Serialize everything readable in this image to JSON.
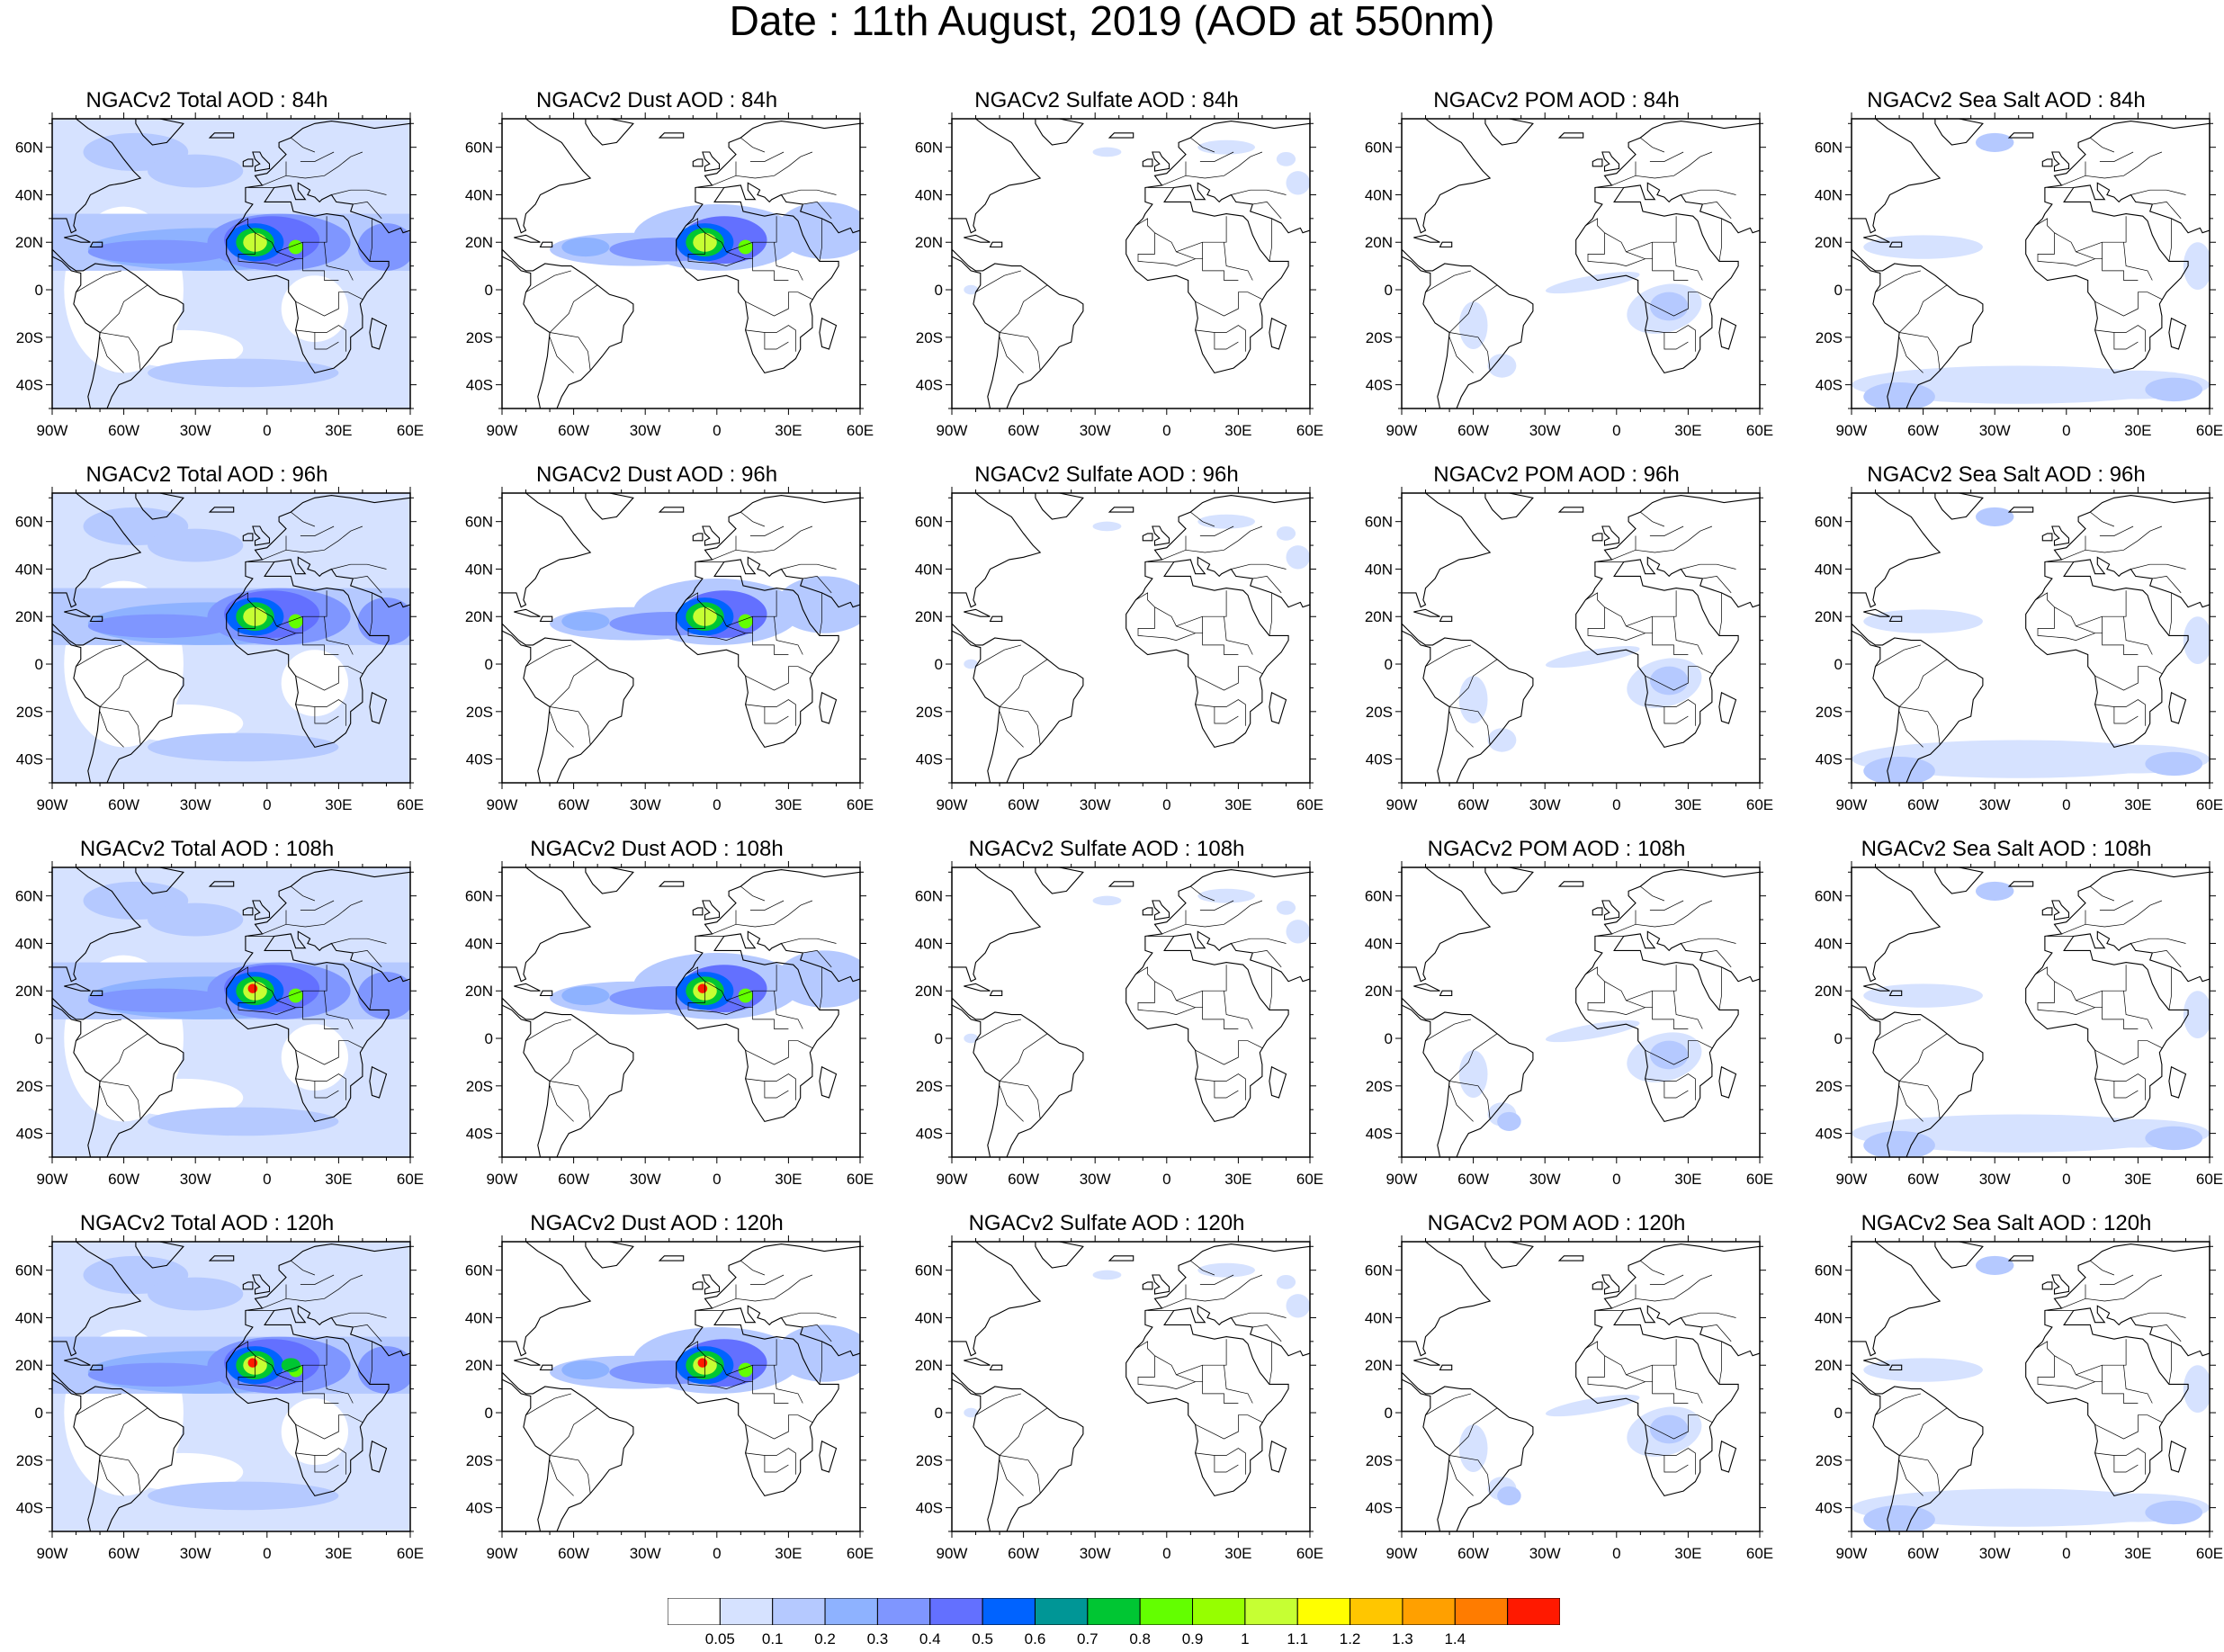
{
  "title": "Date : 11th August, 2019 (AOD at 550nm)",
  "panels": [
    {
      "title": "NGACv2 Total AOD : 84h",
      "species": "total",
      "lead": "84h"
    },
    {
      "title": "NGACv2 Dust AOD : 84h",
      "species": "dust",
      "lead": "84h"
    },
    {
      "title": "NGACv2 Sulfate AOD : 84h",
      "species": "sulfate",
      "lead": "84h"
    },
    {
      "title": "NGACv2 POM AOD : 84h",
      "species": "pom",
      "lead": "84h"
    },
    {
      "title": "NGACv2 Sea Salt AOD : 84h",
      "species": "seasalt",
      "lead": "84h"
    },
    {
      "title": "NGACv2 Total AOD : 96h",
      "species": "total",
      "lead": "96h"
    },
    {
      "title": "NGACv2 Dust AOD : 96h",
      "species": "dust",
      "lead": "96h"
    },
    {
      "title": "NGACv2 Sulfate AOD : 96h",
      "species": "sulfate",
      "lead": "96h"
    },
    {
      "title": "NGACv2 POM AOD : 96h",
      "species": "pom",
      "lead": "96h"
    },
    {
      "title": "NGACv2 Sea Salt AOD : 96h",
      "species": "seasalt",
      "lead": "96h"
    },
    {
      "title": "NGACv2 Total AOD : 108h",
      "species": "total",
      "lead": "108h"
    },
    {
      "title": "NGACv2 Dust AOD : 108h",
      "species": "dust",
      "lead": "108h"
    },
    {
      "title": "NGACv2 Sulfate AOD : 108h",
      "species": "sulfate",
      "lead": "108h"
    },
    {
      "title": "NGACv2 POM AOD : 108h",
      "species": "pom",
      "lead": "108h"
    },
    {
      "title": "NGACv2 Sea Salt AOD : 108h",
      "species": "seasalt",
      "lead": "108h"
    },
    {
      "title": "NGACv2 Total AOD : 120h",
      "species": "total",
      "lead": "120h"
    },
    {
      "title": "NGACv2 Dust AOD : 120h",
      "species": "dust",
      "lead": "120h"
    },
    {
      "title": "NGACv2 Sulfate AOD : 120h",
      "species": "sulfate",
      "lead": "120h"
    },
    {
      "title": "NGACv2 POM AOD : 120h",
      "species": "pom",
      "lead": "120h"
    },
    {
      "title": "NGACv2 Sea Salt  AOD : 120h",
      "species": "seasalt",
      "lead": "120h"
    }
  ],
  "map_extent": {
    "lon": [
      -90,
      60
    ],
    "lat": [
      -50,
      72
    ]
  },
  "lon_ticks": [
    {
      "value": -90,
      "label": "90W"
    },
    {
      "value": -60,
      "label": "60W"
    },
    {
      "value": -30,
      "label": "30W"
    },
    {
      "value": 0,
      "label": "0"
    },
    {
      "value": 30,
      "label": "30E"
    },
    {
      "value": 60,
      "label": "60E"
    }
  ],
  "lat_ticks": [
    {
      "value": 60,
      "label": "60N"
    },
    {
      "value": 40,
      "label": "40N"
    },
    {
      "value": 20,
      "label": "20N"
    },
    {
      "value": 0,
      "label": "0"
    },
    {
      "value": -20,
      "label": "20S"
    },
    {
      "value": -40,
      "label": "40S"
    }
  ],
  "colorbar": {
    "labels": [
      "0.05",
      "0.1",
      "0.2",
      "0.3",
      "0.4",
      "0.5",
      "0.6",
      "0.7",
      "0.8",
      "0.9",
      "1",
      "1.1",
      "1.2",
      "1.3",
      "1.4"
    ],
    "colors": [
      "#ffffff",
      "#d6e2ff",
      "#b5c9ff",
      "#8eb2ff",
      "#7f96ff",
      "#6370ff",
      "#0063ff",
      "#009696",
      "#00c633",
      "#63ff00",
      "#96ff00",
      "#c6ff33",
      "#ffff00",
      "#ffc600",
      "#ffa000",
      "#ff7c00",
      "#ff1900"
    ]
  }
}
